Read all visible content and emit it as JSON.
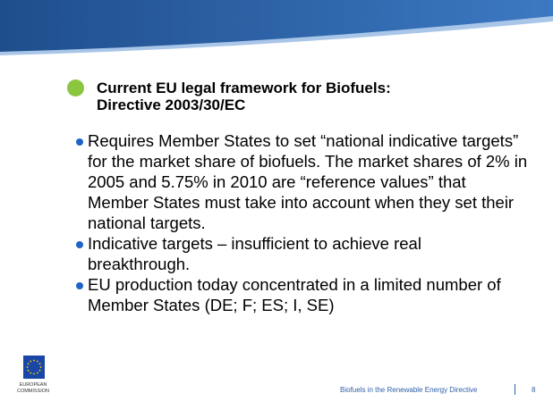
{
  "heading": [
    "Current EU legal framework for Biofuels:",
    "Directive 2003/30/EC"
  ],
  "bullets": [
    "Requires Member States to set “national indicative targets” for the market share of biofuels. The market shares of 2% in 2005 and 5.75% in 2010 are “reference values” that Member States must take into account when they set their national targets.",
    "Indicative targets – insufficient to achieve real breakthrough.",
    "EU production today concentrated in a limited number of Member States (DE; F; ES; I, SE)"
  ],
  "logo": {
    "line1": "EUROPEAN",
    "line2": "COMMISSION"
  },
  "footer": {
    "title": "Biofuels in the Renewable Energy Directive",
    "page": "8"
  }
}
